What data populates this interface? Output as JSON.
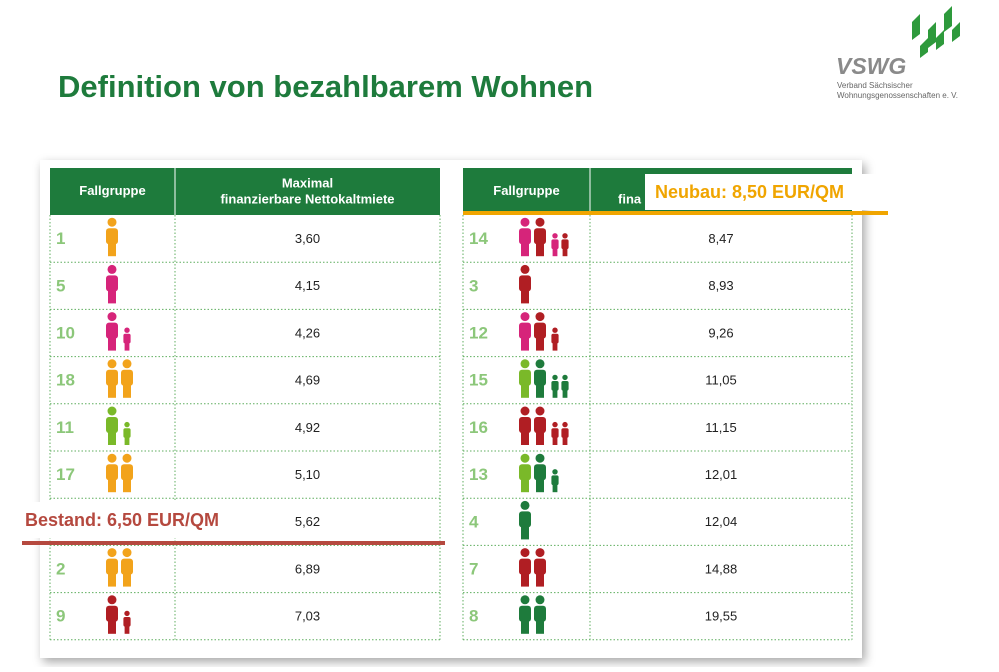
{
  "header": {
    "title": "Definition von bezahlbarem Wohnen",
    "logo": {
      "name": "VSWG",
      "line1": "Verband Sächsischer",
      "line2": "Wohnungsgenossenschaften e. V."
    }
  },
  "tables": [
    {
      "columns": [
        "Fallgruppe",
        "Maximal",
        "finanzierbare Nettokaltmiete"
      ],
      "rows": [
        [
          1,
          "3,60"
        ],
        [
          5,
          "4,15"
        ],
        [
          10,
          "4,26"
        ],
        [
          18,
          "4,69"
        ],
        [
          11,
          "4,92"
        ],
        [
          17,
          "5,10"
        ],
        [
          null,
          "5,62"
        ],
        [
          2,
          "6,89"
        ],
        [
          9,
          "7,03"
        ]
      ]
    },
    {
      "columns": [
        "Fallgruppe",
        "fina"
      ],
      "rows": [
        [
          14,
          "8,47"
        ],
        [
          3,
          "8,93"
        ],
        [
          12,
          "9,26"
        ],
        [
          15,
          "11,05"
        ],
        [
          16,
          "11,15"
        ],
        [
          13,
          "12,01"
        ],
        [
          4,
          "12,04"
        ],
        [
          7,
          "14,88"
        ],
        [
          8,
          "19,55"
        ]
      ]
    }
  ],
  "annotations": {
    "bestand": "Bestand: 6,50 EUR/QM",
    "neubau": "Neubau: 8,50 EUR/QM"
  }
}
